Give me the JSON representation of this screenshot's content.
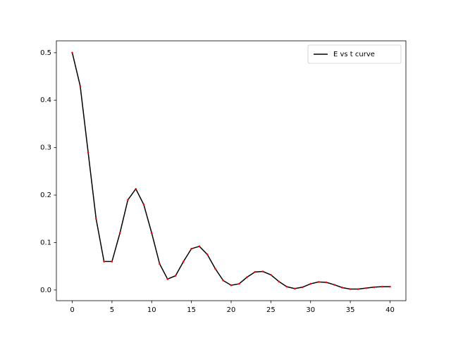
{
  "chart_data": {
    "type": "line",
    "x": [
      0,
      1,
      2,
      3,
      4,
      5,
      6,
      7,
      8,
      9,
      10,
      11,
      12,
      13,
      14,
      15,
      16,
      17,
      18,
      19,
      20,
      21,
      22,
      23,
      24,
      25,
      26,
      27,
      28,
      29,
      30,
      31,
      32,
      33,
      34,
      35,
      36,
      37,
      38,
      39,
      40
    ],
    "series": [
      {
        "name": "E vs t curve",
        "color": "#000000",
        "style": "line",
        "values": [
          0.5,
          0.43,
          0.29,
          0.15,
          0.06,
          0.06,
          0.12,
          0.19,
          0.213,
          0.18,
          0.12,
          0.055,
          0.023,
          0.03,
          0.06,
          0.087,
          0.092,
          0.075,
          0.045,
          0.02,
          0.01,
          0.013,
          0.027,
          0.038,
          0.039,
          0.032,
          0.018,
          0.007,
          0.003,
          0.006,
          0.013,
          0.017,
          0.016,
          0.011,
          0.005,
          0.002,
          0.002,
          0.004,
          0.006,
          0.007,
          0.007
        ]
      },
      {
        "color": "#ff0000",
        "style": "scatter",
        "values": [
          0.5,
          0.43,
          0.29,
          0.15,
          0.06,
          0.06,
          0.12,
          0.19,
          0.213,
          0.18,
          0.12,
          0.055,
          0.023,
          0.03,
          0.06,
          0.087,
          0.092,
          0.075,
          0.045,
          0.02,
          0.01,
          0.013,
          0.027,
          0.038,
          0.039,
          0.032,
          0.018,
          0.007,
          0.003,
          0.006,
          0.013,
          0.017,
          0.016,
          0.011,
          0.005,
          0.002,
          0.002,
          0.004,
          0.006,
          0.007,
          0.007
        ]
      }
    ],
    "xlim": [
      -2,
      42
    ],
    "xticks": [
      0,
      5,
      10,
      15,
      20,
      25,
      30,
      35,
      40
    ],
    "ylim": [
      -0.0225,
      0.525
    ],
    "yticks": [
      {
        "value": 0,
        "label": "0.0"
      },
      0.1,
      0.2,
      0.3,
      0.4,
      0.5
    ],
    "grid": false,
    "legend": "upper-right"
  }
}
